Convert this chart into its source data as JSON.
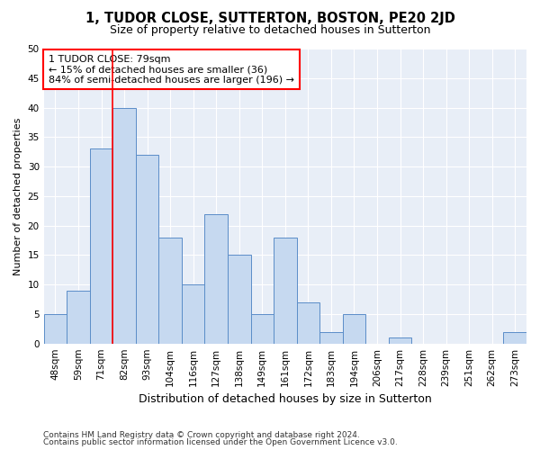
{
  "title": "1, TUDOR CLOSE, SUTTERTON, BOSTON, PE20 2JD",
  "subtitle": "Size of property relative to detached houses in Sutterton",
  "xlabel": "Distribution of detached houses by size in Sutterton",
  "ylabel": "Number of detached properties",
  "categories": [
    "48sqm",
    "59sqm",
    "71sqm",
    "82sqm",
    "93sqm",
    "104sqm",
    "116sqm",
    "127sqm",
    "138sqm",
    "149sqm",
    "161sqm",
    "172sqm",
    "183sqm",
    "194sqm",
    "206sqm",
    "217sqm",
    "228sqm",
    "239sqm",
    "251sqm",
    "262sqm",
    "273sqm"
  ],
  "values": [
    5,
    9,
    33,
    40,
    32,
    18,
    10,
    22,
    15,
    5,
    18,
    7,
    2,
    5,
    0,
    1,
    0,
    0,
    0,
    0,
    2
  ],
  "bar_color": "#c6d9f0",
  "bar_edge_color": "#5b8dc8",
  "red_line_index": 3,
  "annotation_line1": "1 TUDOR CLOSE: 79sqm",
  "annotation_line2": "← 15% of detached houses are smaller (36)",
  "annotation_line3": "84% of semi-detached houses are larger (196) →",
  "annotation_box_color": "white",
  "annotation_box_edge_color": "red",
  "red_line_color": "red",
  "ylim": [
    0,
    50
  ],
  "yticks": [
    0,
    5,
    10,
    15,
    20,
    25,
    30,
    35,
    40,
    45,
    50
  ],
  "bg_color": "#e8eef7",
  "footer1": "Contains HM Land Registry data © Crown copyright and database right 2024.",
  "footer2": "Contains public sector information licensed under the Open Government Licence v3.0.",
  "title_fontsize": 10.5,
  "subtitle_fontsize": 9,
  "ylabel_fontsize": 8,
  "xlabel_fontsize": 9,
  "tick_fontsize": 7.5,
  "footer_fontsize": 6.5,
  "annotation_fontsize": 8
}
